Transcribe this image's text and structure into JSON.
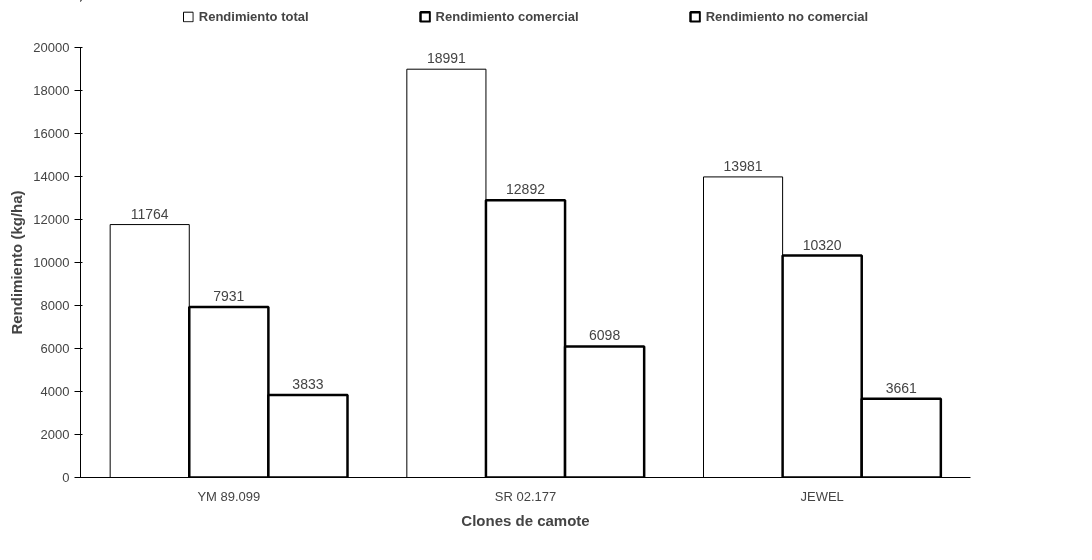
{
  "chart_data": {
    "type": "bar",
    "xlabel": "Clones de camote",
    "ylabel": "Rendimiento (kg/ha)",
    "categories": [
      "YM 89.099",
      "SR 02.177",
      "JEWEL"
    ],
    "series": [
      {
        "name": "Rendimiento total",
        "color": "#ffffff",
        "values": [
          11764,
          18991,
          13981
        ]
      },
      {
        "name": "Rendimiento comercial",
        "color": "#ffffff",
        "values": [
          7931,
          12892,
          10320
        ]
      },
      {
        "name": "Rendimiento no comercial",
        "color": "#ffffff",
        "values": [
          3833,
          6098,
          3661
        ]
      }
    ],
    "ylim": [
      0,
      20000
    ],
    "yticks": [
      0,
      2000,
      4000,
      6000,
      8000,
      10000,
      12000,
      14000,
      16000,
      18000,
      20000
    ],
    "grid": false,
    "legend": "top",
    "data_labels": true
  }
}
